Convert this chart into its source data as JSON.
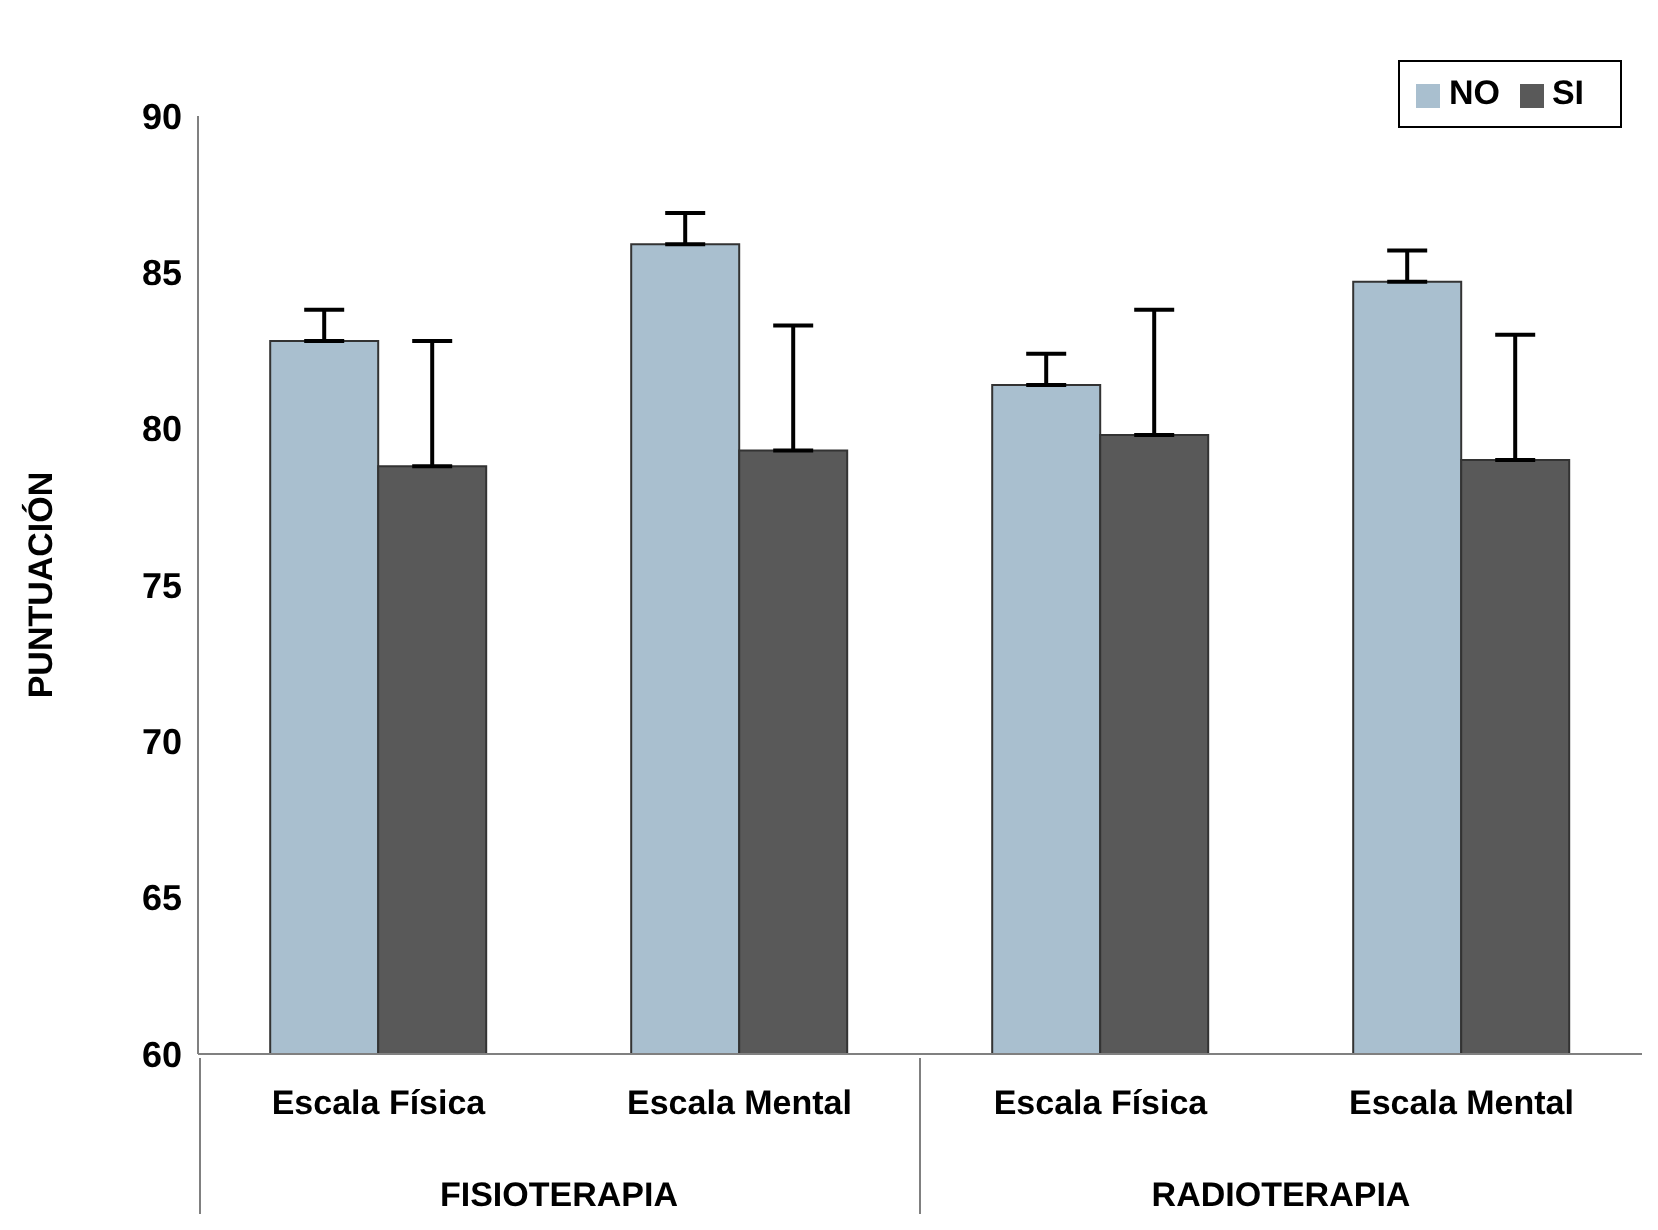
{
  "chart_data": {
    "type": "bar",
    "ylabel": "PUNTUACIÓN",
    "categories": [
      "Escala Física",
      "Escala Mental",
      "Escala Física",
      "Escala Mental"
    ],
    "series": [
      {
        "name": "NO",
        "color": "#a9bfcf",
        "values": [
          82.8,
          85.9,
          81.4,
          84.7
        ],
        "errors": [
          [
            82.8,
            83.8
          ],
          [
            85.9,
            86.9
          ],
          [
            81.4,
            82.4
          ],
          [
            84.7,
            85.7
          ]
        ]
      },
      {
        "name": "SI",
        "color": "#595959",
        "values": [
          78.8,
          79.3,
          79.8,
          79.0
        ],
        "errors": [
          [
            78.8,
            82.8
          ],
          [
            79.3,
            83.3
          ],
          [
            79.8,
            83.8
          ],
          [
            79.0,
            83.0
          ]
        ]
      }
    ],
    "annotations": [
      "FISIOTERAPIA",
      "RADIOTERAPIA"
    ],
    "ylim": [
      60,
      90
    ],
    "yticks": [
      60,
      65,
      70,
      75,
      80,
      85,
      90
    ],
    "legend": "top right"
  }
}
